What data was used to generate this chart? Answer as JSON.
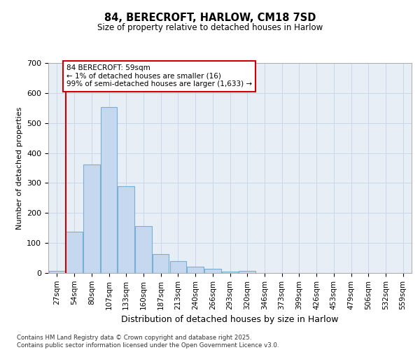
{
  "title1": "84, BERECROFT, HARLOW, CM18 7SD",
  "title2": "Size of property relative to detached houses in Harlow",
  "xlabel": "Distribution of detached houses by size in Harlow",
  "ylabel": "Number of detached properties",
  "bar_labels": [
    "27sqm",
    "54sqm",
    "80sqm",
    "107sqm",
    "133sqm",
    "160sqm",
    "187sqm",
    "213sqm",
    "240sqm",
    "266sqm",
    "293sqm",
    "320sqm",
    "346sqm",
    "373sqm",
    "399sqm",
    "426sqm",
    "453sqm",
    "479sqm",
    "506sqm",
    "532sqm",
    "559sqm"
  ],
  "bar_values": [
    8,
    138,
    362,
    552,
    290,
    157,
    63,
    40,
    22,
    14,
    5,
    8,
    1,
    0,
    0,
    0,
    0,
    0,
    0,
    0,
    0
  ],
  "bar_color": "#c5d8f0",
  "bar_edge_color": "#7aafd4",
  "vline_x_bar_index": 1,
  "property_label_line1": "84 BERECROFT: 59sqm",
  "property_label_line2": "← 1% of detached houses are smaller (16)",
  "property_label_line3": "99% of semi-detached houses are larger (1,633) →",
  "vline_color": "#cc0000",
  "annotation_box_color": "#cc0000",
  "ylim": [
    0,
    700
  ],
  "yticks": [
    0,
    100,
    200,
    300,
    400,
    500,
    600,
    700
  ],
  "grid_color": "#c8d8ea",
  "bg_color": "#e8eef5",
  "footnote": "Contains HM Land Registry data © Crown copyright and database right 2025.\nContains public sector information licensed under the Open Government Licence v3.0."
}
